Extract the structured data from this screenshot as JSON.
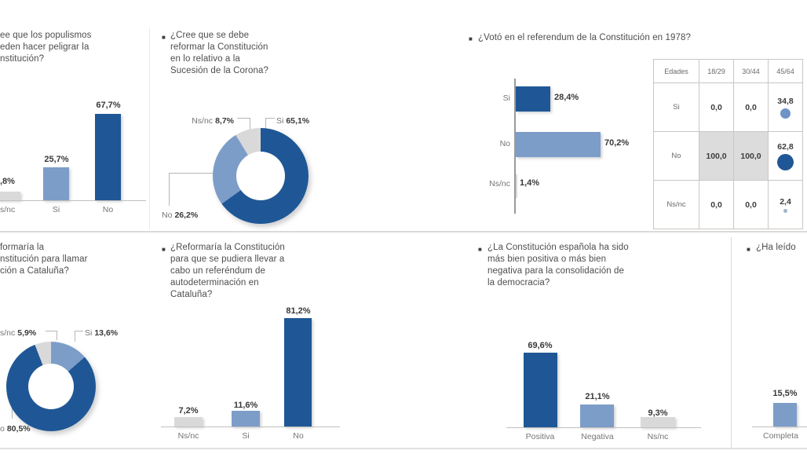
{
  "glyphs": {
    "bullet": "■"
  },
  "colors": {
    "dark_blue": "#1F5796",
    "light_blue": "#7D9DC9",
    "gray": "#D9D9D9",
    "divider": "#DCDAD7",
    "axis_line": "#C2C0BE",
    "title_text": "#4D4D4D",
    "value_text": "#383838",
    "label_text": "#757575"
  },
  "panels": {
    "populismos": {
      "title_lines": [
        "ee que los populismos",
        "eden hacer peligrar la",
        "nstitución?"
      ],
      "bars": [
        {
          "label": "s/nc",
          "value_label": ",8%",
          "value": 6.8,
          "color_key": "gray"
        },
        {
          "label": "Si",
          "value_label": "25,7%",
          "value": 25.7,
          "color_key": "light_blue"
        },
        {
          "label": "No",
          "value_label": "67,7%",
          "value": 67.7,
          "color_key": "dark_blue"
        }
      ]
    },
    "corona": {
      "title_lines": [
        "¿Cree que se debe",
        "reformar la Constitución",
        "en lo relativo a la",
        "Sucesión de la Corona?"
      ],
      "callouts": {
        "nsnc": {
          "label": "Ns/nc",
          "value": "8,7%"
        },
        "si": {
          "label": "Si",
          "value": "65,1%"
        },
        "no": {
          "label": "No",
          "value": "26,2%"
        }
      },
      "slices": [
        {
          "name": "Si",
          "value": 65.1,
          "color": "#1F5796"
        },
        {
          "name": "No",
          "value": 26.2,
          "color": "#7D9DC9"
        },
        {
          "name": "Ns/nc",
          "value": 8.7,
          "color": "#D9D9D9"
        }
      ]
    },
    "referendum1978": {
      "title": "¿Votó en el referendum de la Constitución en 1978?",
      "bars": [
        {
          "label": "Si",
          "value_label": "28,4%",
          "value": 28.4,
          "color_key": "dark_blue"
        },
        {
          "label": "No",
          "value_label": "70,2%",
          "value": 70.2,
          "color_key": "light_blue"
        },
        {
          "label": "Ns/nc",
          "value_label": "1,4%",
          "value": 1.4,
          "color_key": "gray"
        }
      ],
      "table": {
        "headers": [
          "Edades",
          "18/29",
          "30/44",
          "45/64"
        ],
        "rows": [
          {
            "label": "Si",
            "cells": [
              "0,0",
              "0,0",
              "34,8"
            ],
            "dot": "medium"
          },
          {
            "label": "No",
            "cells": [
              "100,0",
              "100,0",
              "62,8"
            ],
            "dot": "large"
          },
          {
            "label": "Ns/nc",
            "cells": [
              "0,0",
              "0,0",
              "2,4"
            ],
            "dot": "tiny"
          }
        ]
      }
    },
    "cataluna_llamar": {
      "title_lines": [
        "formaría la",
        "nstitución para llamar",
        "ción a Cataluña?"
      ],
      "callouts": {
        "nsnc": {
          "label": "s/nc",
          "value": "5,9%"
        },
        "si": {
          "label": "Si",
          "value": "13,6%"
        },
        "no": {
          "label": "o",
          "value": "80,5%"
        }
      },
      "slices": [
        {
          "name": "Si",
          "value": 13.6,
          "color": "#7D9DC9"
        },
        {
          "name": "No",
          "value": 80.5,
          "color": "#1F5796"
        },
        {
          "name": "Ns/nc",
          "value": 5.9,
          "color": "#D9D9D9"
        }
      ]
    },
    "autodeterminacion": {
      "title_lines": [
        "¿Reformaría la Constitución",
        "para que se pudiera llevar a",
        "cabo un referéndum de",
        "autodeterminación en",
        "Cataluña?"
      ],
      "bars": [
        {
          "label": "Ns/nc",
          "value_label": "7,2%",
          "value": 7.2,
          "color_key": "gray"
        },
        {
          "label": "Si",
          "value_label": "11,6%",
          "value": 11.6,
          "color_key": "light_blue"
        },
        {
          "label": "No",
          "value_label": "81,2%",
          "value": 81.2,
          "color_key": "dark_blue"
        }
      ]
    },
    "democracia": {
      "title_lines": [
        "¿La Constitución española ha sido",
        "más bien positiva o más bien",
        "negativa para la consolidación de",
        "la democracia?"
      ],
      "bars": [
        {
          "label": "Positiva",
          "value_label": "69,6%",
          "value": 69.6,
          "color_key": "dark_blue"
        },
        {
          "label": "Negativa",
          "value_label": "21,1%",
          "value": 21.1,
          "color_key": "light_blue"
        },
        {
          "label": "Ns/nc",
          "value_label": "9,3%",
          "value": 9.3,
          "color_key": "gray"
        }
      ]
    },
    "ha_leido": {
      "title": "¿Ha leído",
      "bars": [
        {
          "label": "Completa",
          "value_label": "15,5%",
          "value": 15.5,
          "color_key": "light_blue"
        }
      ]
    }
  },
  "chart_data": [
    {
      "id": "populismos",
      "type": "bar",
      "title": "ee que los populismos eden hacer peligrar la nstitución?",
      "categories": [
        "Ns/nc",
        "Si",
        "No"
      ],
      "values": [
        6.8,
        25.7,
        67.7
      ],
      "value_labels": [
        ",8%",
        "25,7%",
        "67,7%"
      ],
      "colors": [
        "#D9D9D9",
        "#7D9DC9",
        "#1F5796"
      ],
      "ylim": [
        0,
        100
      ],
      "grid": false
    },
    {
      "id": "corona",
      "type": "pie",
      "title": "¿Cree que se debe reformar la Constitución en lo relativo a la Sucesión de la Corona?",
      "categories": [
        "Si",
        "No",
        "Ns/nc"
      ],
      "values": [
        65.1,
        26.2,
        8.7
      ],
      "value_labels": [
        "65,1%",
        "26,2%",
        "8,7%"
      ],
      "colors": [
        "#1F5796",
        "#7D9DC9",
        "#D9D9D9"
      ],
      "donut": true
    },
    {
      "id": "referendum1978",
      "type": "bar",
      "title": "¿Votó en el referendum de la Constitución en 1978?",
      "orientation": "horizontal",
      "categories": [
        "Si",
        "No",
        "Ns/nc"
      ],
      "values": [
        28.4,
        70.2,
        1.4
      ],
      "value_labels": [
        "28,4%",
        "70,2%",
        "1,4%"
      ],
      "colors": [
        "#1F5796",
        "#7D9DC9",
        "#D9D9D9"
      ],
      "xlim": [
        0,
        100
      ],
      "grid": false
    },
    {
      "id": "referendum1978_edades",
      "type": "table",
      "columns": [
        "Edades",
        "18/29",
        "30/44",
        "45/64"
      ],
      "rows": [
        [
          "Si",
          "0,0",
          "0,0",
          "34,8"
        ],
        [
          "No",
          "100,0",
          "100,0",
          "62,8"
        ],
        [
          "Ns/nc",
          "0,0",
          "0,0",
          "2,4"
        ]
      ]
    },
    {
      "id": "cataluna_llamar",
      "type": "pie",
      "title": "formaría la nstitución para llamar ción a Cataluña?",
      "categories": [
        "Si",
        "No",
        "Ns/nc"
      ],
      "values": [
        13.6,
        80.5,
        5.9
      ],
      "value_labels": [
        "13,6%",
        "80,5%",
        "5,9%"
      ],
      "colors": [
        "#7D9DC9",
        "#1F5796",
        "#D9D9D9"
      ],
      "donut": true
    },
    {
      "id": "autodeterminacion",
      "type": "bar",
      "title": "¿Reformaría la Constitución para que se pudiera llevar a cabo un referéndum de autodeterminación en Cataluña?",
      "categories": [
        "Ns/nc",
        "Si",
        "No"
      ],
      "values": [
        7.2,
        11.6,
        81.2
      ],
      "value_labels": [
        "7,2%",
        "11,6%",
        "81,2%"
      ],
      "colors": [
        "#D9D9D9",
        "#7D9DC9",
        "#1F5796"
      ],
      "ylim": [
        0,
        100
      ],
      "grid": false
    },
    {
      "id": "democracia",
      "type": "bar",
      "title": "¿La Constitución española ha sido más bien positiva o más bien negativa para la consolidación de la democracia?",
      "categories": [
        "Positiva",
        "Negativa",
        "Ns/nc"
      ],
      "values": [
        69.6,
        21.1,
        9.3
      ],
      "value_labels": [
        "69,6%",
        "21,1%",
        "9,3%"
      ],
      "colors": [
        "#1F5796",
        "#7D9DC9",
        "#D9D9D9"
      ],
      "ylim": [
        0,
        100
      ],
      "grid": false
    },
    {
      "id": "ha_leido",
      "type": "bar",
      "title": "¿Ha leído",
      "categories": [
        "Completa"
      ],
      "values": [
        15.5
      ],
      "value_labels": [
        "15,5%"
      ],
      "colors": [
        "#7D9DC9"
      ],
      "ylim": [
        0,
        100
      ],
      "grid": false
    }
  ]
}
